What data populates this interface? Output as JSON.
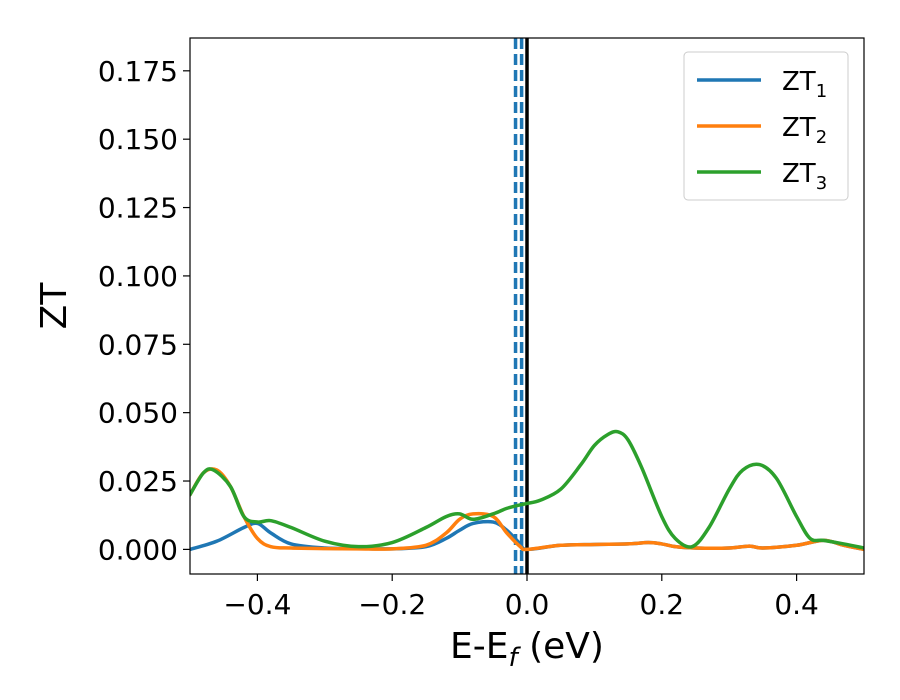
{
  "chart_data": {
    "type": "line",
    "title": "",
    "xlabel": "E-E",
    "xlabel_sub": "f",
    "xlabel_unit": " (eV)",
    "ylabel": "ZT",
    "xlim": [
      -0.5,
      0.5
    ],
    "ylim": [
      -0.009,
      0.187
    ],
    "xticks": [
      -0.4,
      -0.2,
      0.0,
      0.2,
      0.4
    ],
    "xtick_labels": [
      "−0.4",
      "−0.2",
      "0.0",
      "0.2",
      "0.4"
    ],
    "yticks": [
      0.0,
      0.025,
      0.05,
      0.075,
      0.1,
      0.125,
      0.15,
      0.175
    ],
    "ytick_labels": [
      "0.000",
      "0.025",
      "0.050",
      "0.075",
      "0.100",
      "0.125",
      "0.150",
      "0.175"
    ],
    "grid": false,
    "legend_position": "top-right",
    "vlines": [
      {
        "x": -0.017,
        "style": "dashed",
        "color": "#1f77b4"
      },
      {
        "x": -0.008,
        "style": "dashed",
        "color": "#1f77b4"
      },
      {
        "x": 0.0,
        "style": "solid",
        "color": "#000000"
      }
    ],
    "series": [
      {
        "name": "ZT",
        "sub": "1",
        "color": "#1f77b4",
        "x": [
          -0.5,
          -0.46,
          -0.42,
          -0.4,
          -0.38,
          -0.35,
          -0.3,
          -0.25,
          -0.2,
          -0.15,
          -0.12,
          -0.1,
          -0.08,
          -0.05,
          -0.03,
          -0.01,
          0.0,
          0.05,
          0.1,
          0.15,
          0.18,
          0.2,
          0.22,
          0.25,
          0.3,
          0.33,
          0.35,
          0.4,
          0.44,
          0.47,
          0.5
        ],
        "y": [
          0.0,
          0.003,
          0.008,
          0.0095,
          0.006,
          0.002,
          0.0005,
          0.0003,
          0.0002,
          0.001,
          0.004,
          0.007,
          0.0095,
          0.01,
          0.007,
          0.002,
          0.0,
          0.0015,
          0.0018,
          0.002,
          0.0025,
          0.002,
          0.001,
          0.0005,
          0.0005,
          0.0012,
          0.0005,
          0.0015,
          0.0033,
          0.0015,
          0.0
        ]
      },
      {
        "name": "ZT",
        "sub": "2",
        "color": "#ff7f0e",
        "x": [
          -0.5,
          -0.48,
          -0.46,
          -0.44,
          -0.42,
          -0.4,
          -0.38,
          -0.35,
          -0.3,
          -0.25,
          -0.2,
          -0.15,
          -0.12,
          -0.1,
          -0.08,
          -0.05,
          -0.03,
          -0.01,
          0.0,
          0.05,
          0.1,
          0.15,
          0.18,
          0.2,
          0.22,
          0.25,
          0.3,
          0.33,
          0.35,
          0.4,
          0.44,
          0.47,
          0.5
        ],
        "y": [
          0.02,
          0.028,
          0.029,
          0.023,
          0.012,
          0.004,
          0.001,
          0.0005,
          0.0003,
          0.0002,
          0.0002,
          0.0015,
          0.006,
          0.011,
          0.013,
          0.012,
          0.006,
          0.001,
          0.0,
          0.0015,
          0.0018,
          0.002,
          0.0025,
          0.002,
          0.001,
          0.0005,
          0.0005,
          0.0012,
          0.0005,
          0.0015,
          0.0033,
          0.0015,
          0.0
        ]
      },
      {
        "name": "ZT",
        "sub": "3",
        "color": "#2ca02c",
        "x": [
          -0.5,
          -0.48,
          -0.465,
          -0.44,
          -0.42,
          -0.4,
          -0.38,
          -0.35,
          -0.3,
          -0.25,
          -0.2,
          -0.15,
          -0.12,
          -0.1,
          -0.08,
          -0.05,
          -0.03,
          -0.01,
          0.0,
          0.02,
          0.05,
          0.08,
          0.1,
          0.12,
          0.135,
          0.15,
          0.17,
          0.2,
          0.22,
          0.245,
          0.27,
          0.3,
          0.32,
          0.345,
          0.37,
          0.4,
          0.42,
          0.44,
          0.47,
          0.5
        ],
        "y": [
          0.02,
          0.028,
          0.029,
          0.023,
          0.012,
          0.01,
          0.0105,
          0.008,
          0.003,
          0.001,
          0.0025,
          0.008,
          0.012,
          0.013,
          0.011,
          0.013,
          0.015,
          0.0163,
          0.0168,
          0.018,
          0.022,
          0.031,
          0.038,
          0.042,
          0.043,
          0.04,
          0.03,
          0.012,
          0.004,
          0.001,
          0.008,
          0.022,
          0.029,
          0.031,
          0.026,
          0.012,
          0.004,
          0.0033,
          0.002,
          0.0005
        ]
      }
    ]
  }
}
